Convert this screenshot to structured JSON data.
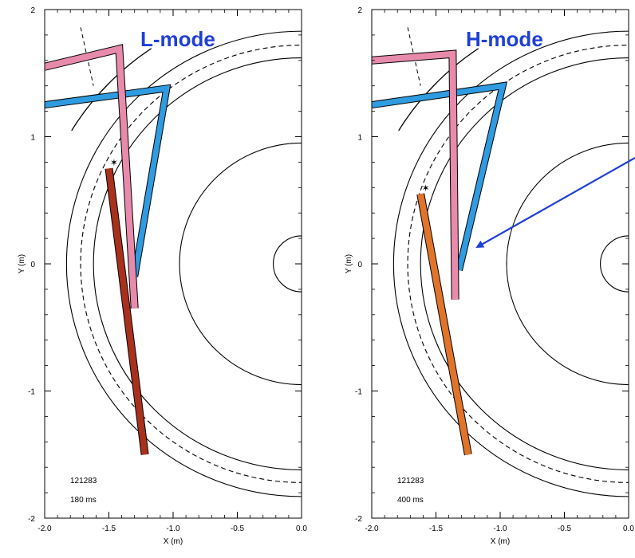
{
  "colors": {
    "pink": "#e88aab",
    "blue": "#2f9be0",
    "dark_red": "#a8301c",
    "orange": "#e0742a",
    "arrow": "#1f3fd6",
    "label": "#1f3fd6"
  },
  "panels": [
    {
      "mode_label": "L-mode",
      "shot": "121283",
      "time": "180 ms",
      "x_axis_label": "X (m)",
      "y_axis_label": "Y (m)",
      "x_ticks": [
        "-2.0",
        "-1.5",
        "-1.0",
        "-0.5",
        "0.0"
      ],
      "y_ticks": [
        "2",
        "1",
        "0",
        "-1",
        "-2"
      ],
      "lower_beam_color": "dark_red",
      "beams": {
        "pink": [
          [
            -2.0,
            1.55
          ],
          [
            -1.42,
            1.69
          ],
          [
            -1.3,
            -0.35
          ]
        ],
        "blue": [
          [
            -2.0,
            1.25
          ],
          [
            -1.05,
            1.38
          ],
          [
            -1.3,
            -0.1
          ]
        ],
        "lower": [
          [
            -1.5,
            0.75
          ],
          [
            -1.22,
            -1.5
          ]
        ]
      }
    },
    {
      "mode_label": "H-mode",
      "shot": "121283",
      "time": "400 ms",
      "x_axis_label": "X (m)",
      "y_axis_label": "Y (m)",
      "x_ticks": [
        "-2.0",
        "-1.5",
        "-1.0",
        "-0.5",
        "0.0"
      ],
      "y_ticks": [
        "2",
        "1",
        "0",
        "-1",
        "-2"
      ],
      "lower_beam_color": "orange",
      "beams": {
        "pink": [
          [
            -2.0,
            1.6
          ],
          [
            -1.37,
            1.65
          ],
          [
            -1.35,
            -0.28
          ]
        ],
        "blue": [
          [
            -2.0,
            1.25
          ],
          [
            -0.98,
            1.4
          ],
          [
            -1.32,
            -0.05
          ]
        ],
        "lower": [
          [
            -1.62,
            0.55
          ],
          [
            -1.25,
            -1.5
          ]
        ]
      }
    }
  ]
}
